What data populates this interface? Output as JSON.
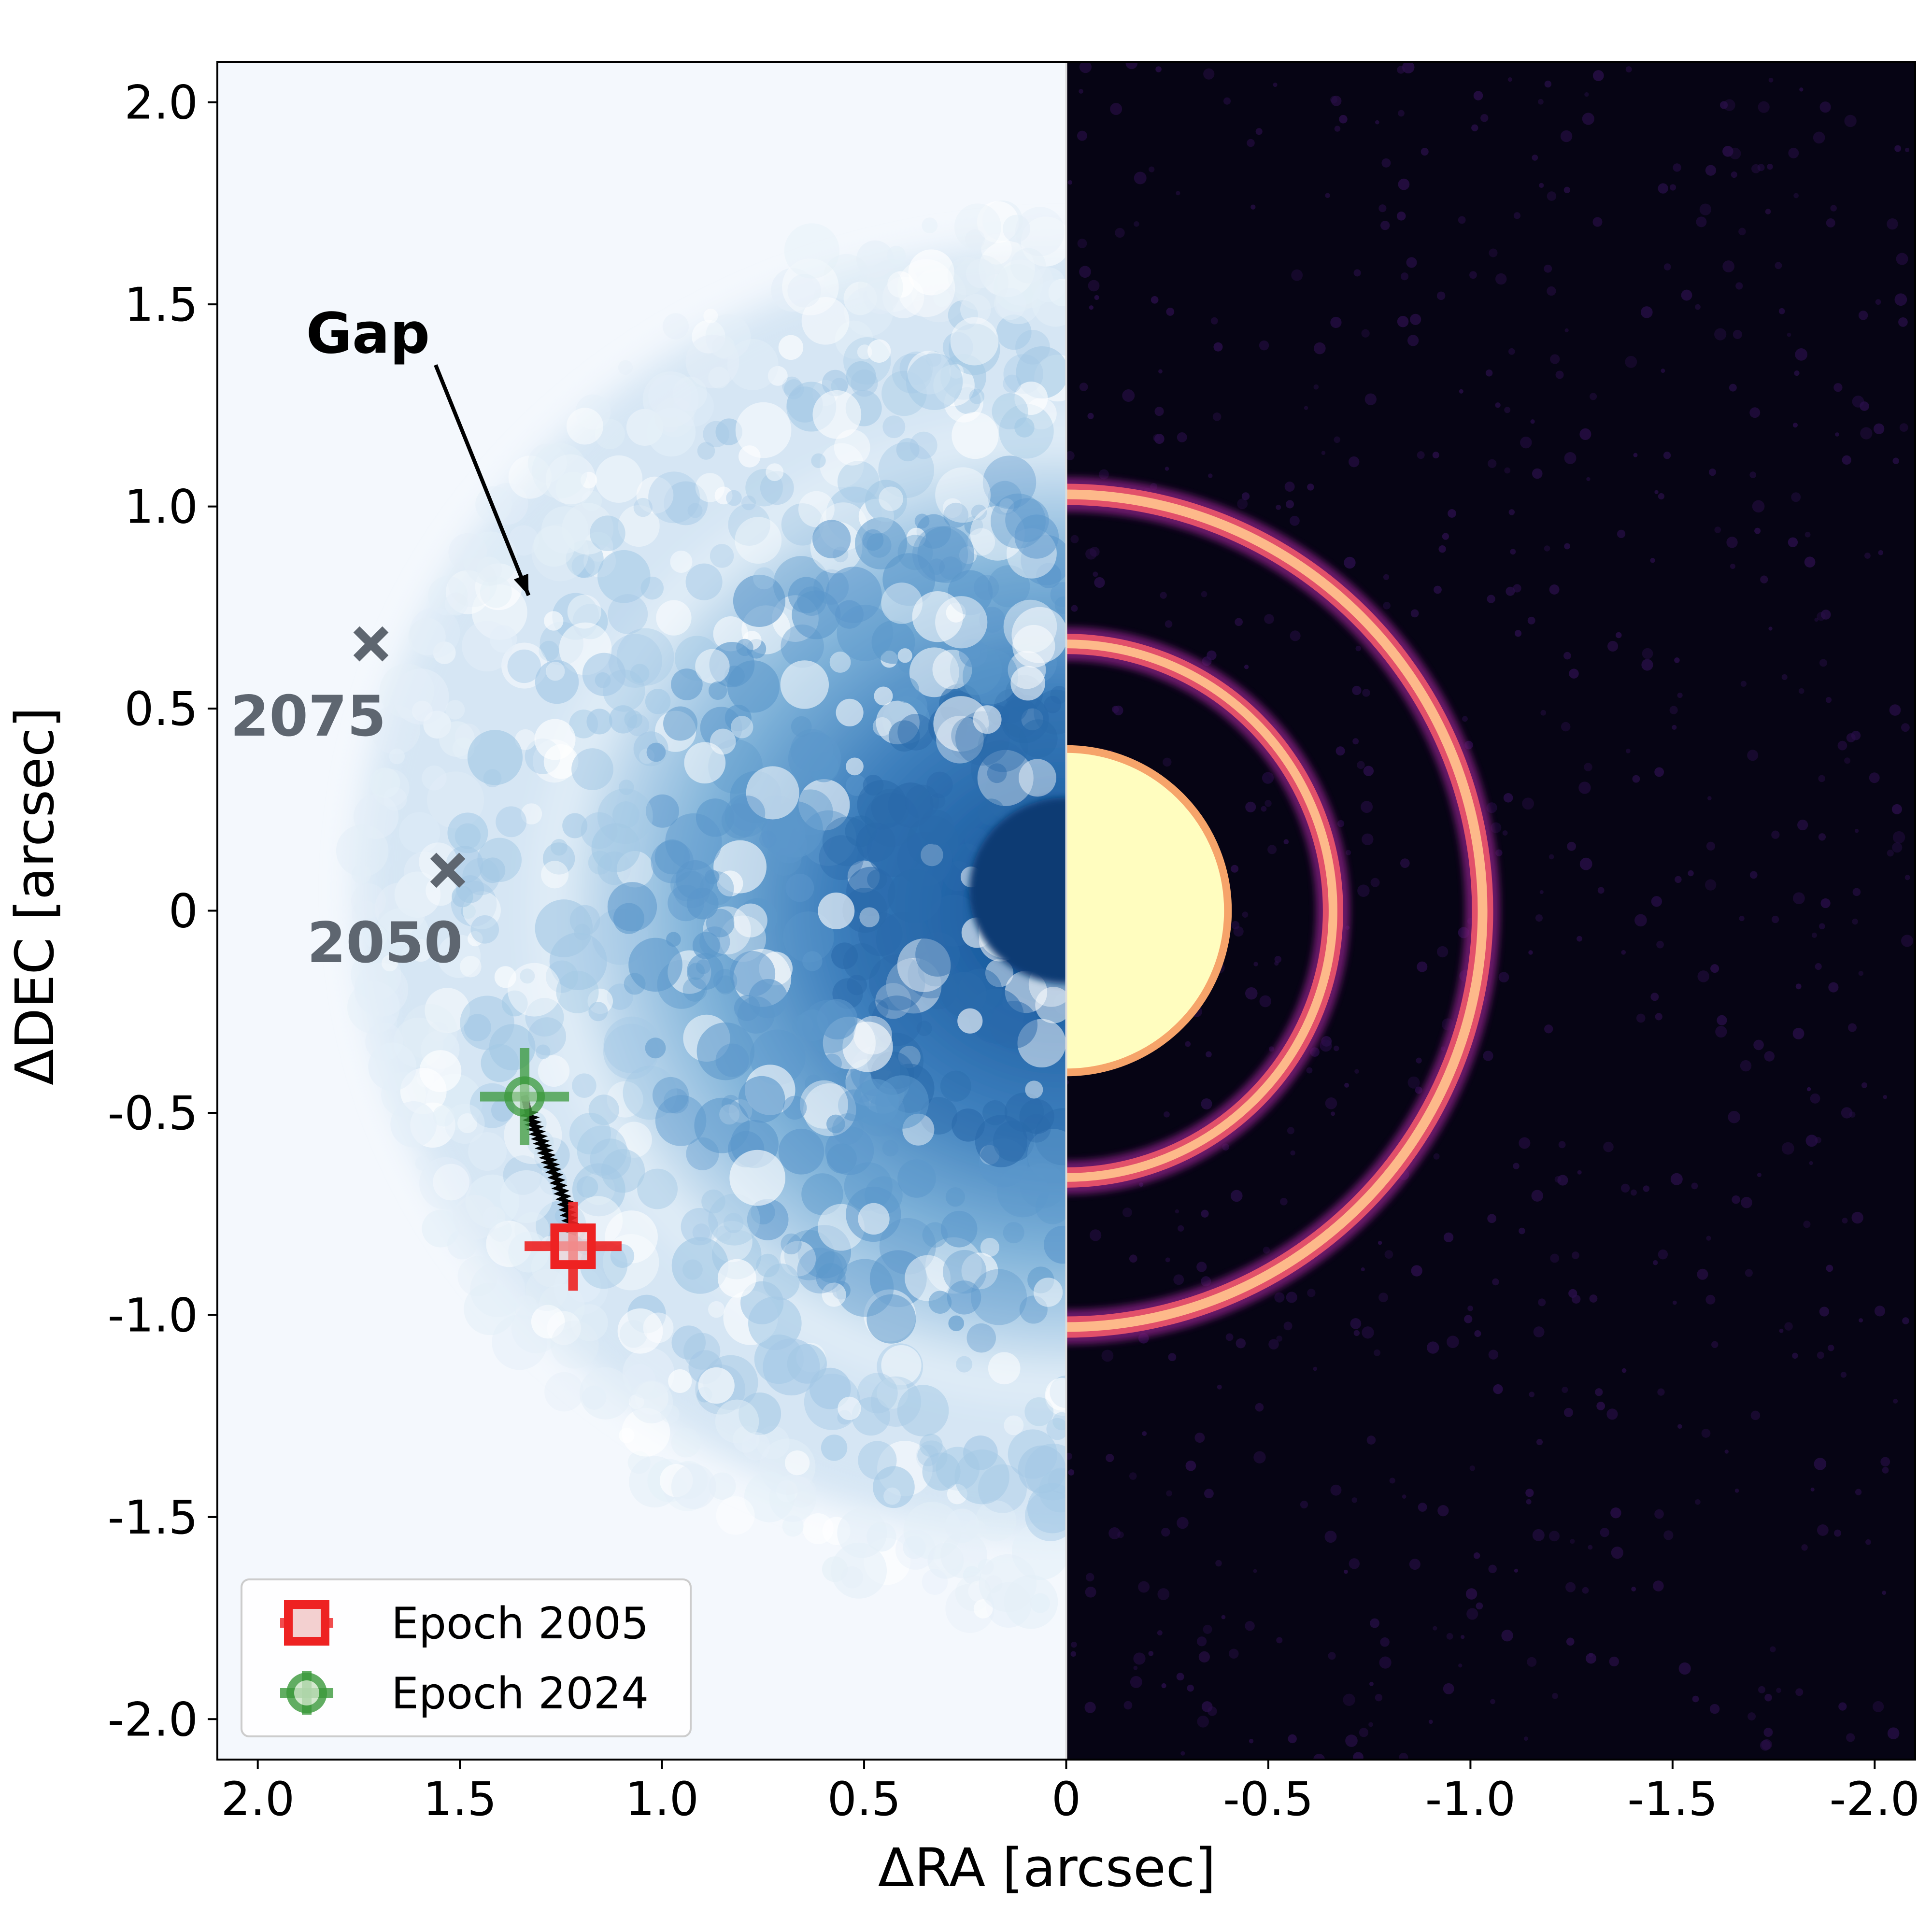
{
  "chart_data": {
    "type": "scatter",
    "xlabel": "ΔRA [arcsec]",
    "ylabel": "ΔDEC [arcsec]",
    "xlim": [
      2.1,
      -2.1
    ],
    "ylim": [
      -2.1,
      2.1
    ],
    "x_ticks": [
      {
        "value": 2.0,
        "label": "2.0"
      },
      {
        "value": 1.5,
        "label": "1.5"
      },
      {
        "value": 1.0,
        "label": "1.0"
      },
      {
        "value": 0.5,
        "label": "0.5"
      },
      {
        "value": 0,
        "label": "0"
      },
      {
        "value": -0.5,
        "label": "-0.5"
      },
      {
        "value": -1.0,
        "label": "-1.0"
      },
      {
        "value": -1.5,
        "label": "-1.5"
      },
      {
        "value": -2.0,
        "label": "-2.0"
      }
    ],
    "y_ticks": [
      {
        "value": 2.0,
        "label": "2.0"
      },
      {
        "value": 1.5,
        "label": "1.5"
      },
      {
        "value": 1.0,
        "label": "1.0"
      },
      {
        "value": 0.5,
        "label": "0.5"
      },
      {
        "value": 0,
        "label": "0"
      },
      {
        "value": -0.5,
        "label": "-0.5"
      },
      {
        "value": -1.0,
        "label": "-1.0"
      },
      {
        "value": -1.5,
        "label": "-1.5"
      },
      {
        "value": -2.0,
        "label": "-2.0"
      }
    ],
    "series": [
      {
        "name": "Epoch 2005",
        "marker": "square",
        "color": "#ee2222",
        "x": [
          1.22
        ],
        "y": [
          -0.83
        ],
        "xerr": 0.12,
        "yerr": 0.11
      },
      {
        "name": "Epoch 2024",
        "marker": "circle",
        "color": "#3b9a3b",
        "x": [
          1.34
        ],
        "y": [
          -0.46
        ],
        "xerr": 0.11,
        "yerr": 0.12
      }
    ],
    "orbit_track": {
      "color": "#000000",
      "x": [
        1.22,
        1.24,
        1.27,
        1.3,
        1.33,
        1.34
      ],
      "y": [
        -0.8,
        -0.72,
        -0.64,
        -0.57,
        -0.5,
        -0.46
      ]
    },
    "predicted_positions": [
      {
        "label": "2050",
        "x": 1.53,
        "y": 0.1
      },
      {
        "label": "2075",
        "x": 1.72,
        "y": 0.66
      }
    ],
    "annotation": {
      "text": "Gap",
      "arrow_tail_x": 1.56,
      "arrow_tail_y": 1.35,
      "arrow_head_x": 1.33,
      "arrow_head_y": 0.78
    },
    "left_panel_colormap": "Blues",
    "right_panel_colormap": "magma",
    "ring_radii_arcsec": [
      0.4,
      0.66,
      1.03
    ],
    "legend": {
      "location": "lower-left",
      "entries": [
        "Epoch 2005",
        "Epoch 2024"
      ]
    },
    "grid": false
  }
}
